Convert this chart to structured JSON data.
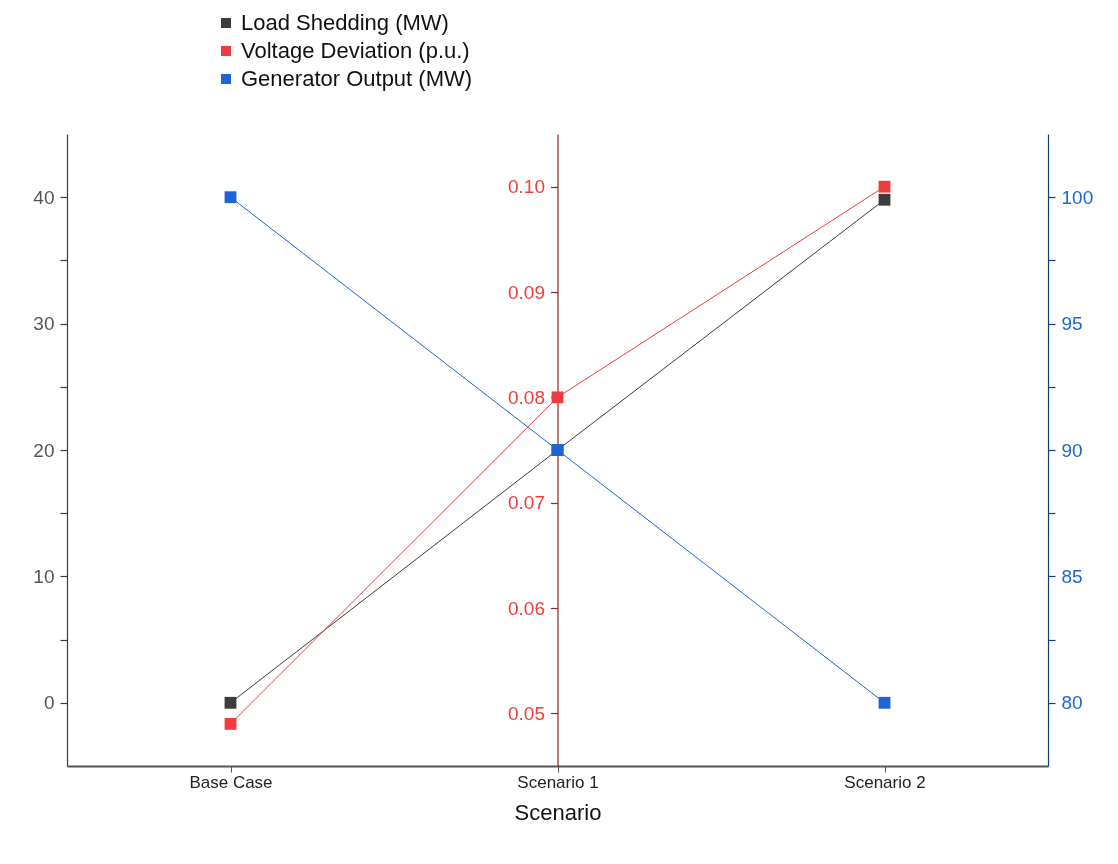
{
  "chart_data": {
    "type": "line",
    "xlabel": "Scenario",
    "categories": [
      "Base Case",
      "Scenario 1",
      "Scenario 2"
    ],
    "series": [
      {
        "name": "Load Shedding (MW)",
        "color": "#3c3c3c",
        "values": [
          0,
          20,
          39.8
        ]
      },
      {
        "name": "Voltage Deviation (p.u.)",
        "color": "#f03c3c",
        "values": [
          0.049,
          0.08,
          0.1
        ],
        "axis": "y2"
      },
      {
        "name": "Generator Output (MW)",
        "color": "#1e64d2",
        "values": [
          100,
          90,
          80
        ],
        "axis": "y3"
      }
    ],
    "ylim": [
      -5,
      45
    ],
    "yticks": [
      0,
      {
        "value": 5,
        "label": null
      },
      10,
      {
        "value": 15,
        "label": null
      },
      20,
      {
        "value": 25,
        "label": null
      },
      30,
      {
        "value": 35,
        "label": null
      },
      40
    ],
    "y2lim": [
      0.045,
      0.105
    ],
    "y2ticks": [
      {
        "value": 0.05,
        "label": "0.05"
      },
      {
        "value": 0.06,
        "label": "0.06"
      },
      {
        "value": 0.07,
        "label": "0.07"
      },
      {
        "value": 0.08,
        "label": "0.08"
      },
      {
        "value": 0.09,
        "label": "0.09"
      },
      {
        "value": 0.1,
        "label": "0.10"
      }
    ],
    "y3lim": [
      77.5,
      102.5
    ],
    "y3ticks": [
      80,
      {
        "value": 82.5,
        "label": null
      },
      85,
      {
        "value": 87.5,
        "label": null
      },
      90,
      {
        "value": 92.5,
        "label": null
      },
      95,
      {
        "value": 97.5,
        "label": null
      },
      100
    ],
    "legend": "top left",
    "marker": "square",
    "line_style": "solid",
    "grid": false
  }
}
